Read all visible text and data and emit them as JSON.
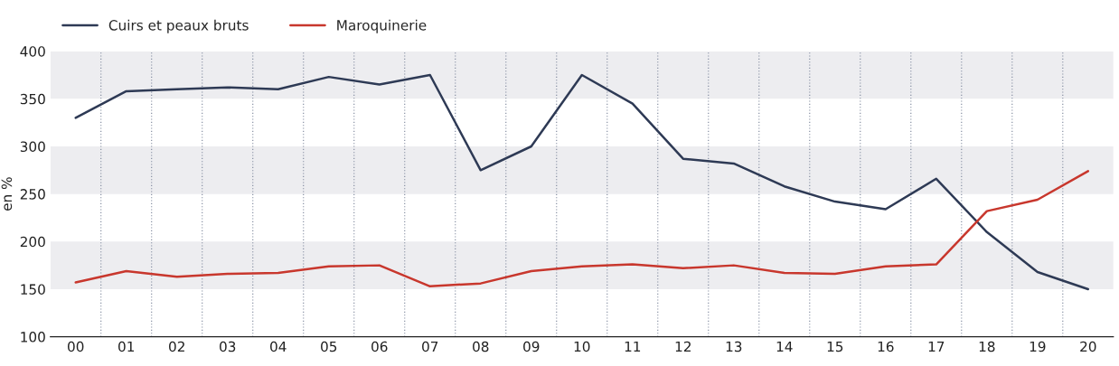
{
  "chart_data": {
    "type": "line",
    "ylabel": "en %",
    "categories": [
      "00",
      "01",
      "02",
      "03",
      "04",
      "05",
      "06",
      "07",
      "08",
      "09",
      "10",
      "11",
      "12",
      "13",
      "14",
      "15",
      "16",
      "17",
      "18",
      "19",
      "20"
    ],
    "series": [
      {
        "name": "Cuirs et peaux bruts",
        "color": "#2e3a55",
        "values": [
          330,
          358,
          360,
          362,
          360,
          373,
          365,
          375,
          275,
          300,
          375,
          345,
          287,
          282,
          258,
          242,
          234,
          266,
          210,
          168,
          150
        ]
      },
      {
        "name": "Maroquinerie",
        "color": "#c8372d",
        "values": [
          157,
          169,
          163,
          166,
          167,
          174,
          175,
          153,
          156,
          169,
          174,
          176,
          172,
          175,
          167,
          166,
          174,
          176,
          232,
          244,
          274
        ]
      }
    ],
    "ylim": [
      100,
      400
    ],
    "yticks": [
      100,
      150,
      200,
      250,
      300,
      350,
      400
    ],
    "bands": [
      {
        "axis": "y",
        "from": 150,
        "to": 200,
        "color": "#ededf0"
      },
      {
        "axis": "y",
        "from": 250,
        "to": 300,
        "color": "#ededf0"
      },
      {
        "axis": "y",
        "from": 350,
        "to": 400,
        "color": "#ededf0"
      }
    ],
    "grid": "x",
    "legend": "top left",
    "marker": "none",
    "line_style": "solid"
  }
}
